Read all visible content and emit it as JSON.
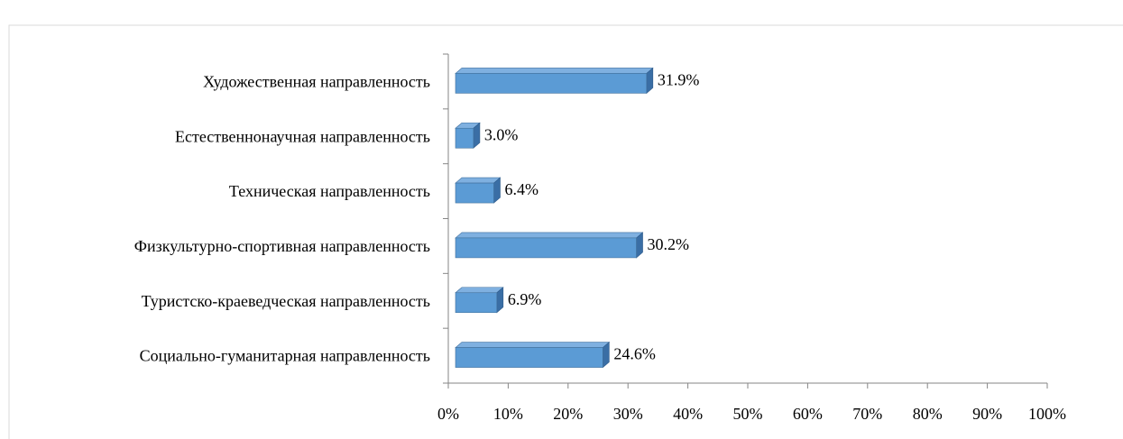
{
  "chart_data": {
    "type": "bar3d_horizontal",
    "categories": [
      "Художественная направленность",
      "Естественнонаучная направленность",
      "Техническая направленность",
      "Физкультурно-спортивная направленность",
      "Туристско-краеведческая направленность",
      "Социально-гуманитарная направленность"
    ],
    "values": [
      31.9,
      3.0,
      6.4,
      30.2,
      6.9,
      24.6
    ],
    "value_labels": [
      "31.9%",
      "3.0%",
      "6.4%",
      "30.2%",
      "6.9%",
      "24.6%"
    ],
    "color": "#5b9bd5",
    "xlim": [
      0,
      100
    ],
    "xticks": [
      {
        "value": 0,
        "label": "0%"
      },
      {
        "value": 10,
        "label": "10%"
      },
      {
        "value": 20,
        "label": "20%"
      },
      {
        "value": 30,
        "label": "30%"
      },
      {
        "value": 40,
        "label": "40%"
      },
      {
        "value": 50,
        "label": "50%"
      },
      {
        "value": 60,
        "label": "60%"
      },
      {
        "value": 70,
        "label": "70%"
      },
      {
        "value": 80,
        "label": "80%"
      },
      {
        "value": 90,
        "label": "90%"
      },
      {
        "value": 100,
        "label": "100%"
      }
    ],
    "grid": false
  }
}
